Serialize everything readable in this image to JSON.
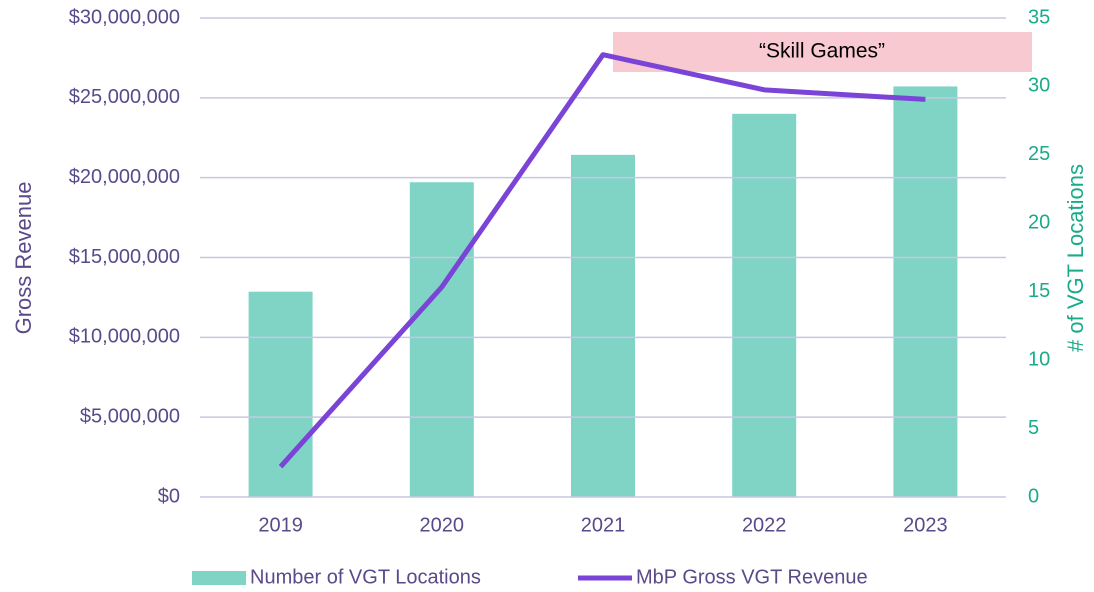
{
  "chart_data": {
    "type": "bar_line",
    "categories": [
      "2019",
      "2020",
      "2021",
      "2022",
      "2023"
    ],
    "series": [
      {
        "name": "Number of VGT Locations",
        "type": "bar",
        "axis": "y2",
        "color": "#80d4c6",
        "values": [
          15,
          23,
          25,
          28,
          30
        ]
      },
      {
        "name": "MbP Gross VGT Revenue",
        "type": "line",
        "axis": "y",
        "color": "#7a44d6",
        "values": [
          1900000,
          13150000,
          27700000,
          25500000,
          24900000
        ]
      }
    ],
    "ylabel": "Gross Revenue",
    "y2label": "# of VGT Locations",
    "ylim": [
      0,
      30000000
    ],
    "yticks": [
      {
        "value": 0,
        "label": "$0"
      },
      {
        "value": 5000000,
        "label": "$5,000,000"
      },
      {
        "value": 10000000,
        "label": "$10,000,000"
      },
      {
        "value": 15000000,
        "label": "$15,000,000"
      },
      {
        "value": 20000000,
        "label": "$20,000,000"
      },
      {
        "value": 25000000,
        "label": "$25,000,000"
      },
      {
        "value": 30000000,
        "label": "$30,000,000"
      }
    ],
    "y2lim": [
      0,
      35
    ],
    "y2ticks": [
      0,
      5,
      10,
      15,
      20,
      25,
      30,
      35
    ],
    "grid": true,
    "legend": "bottom",
    "annotation": "“Skill Games”"
  }
}
